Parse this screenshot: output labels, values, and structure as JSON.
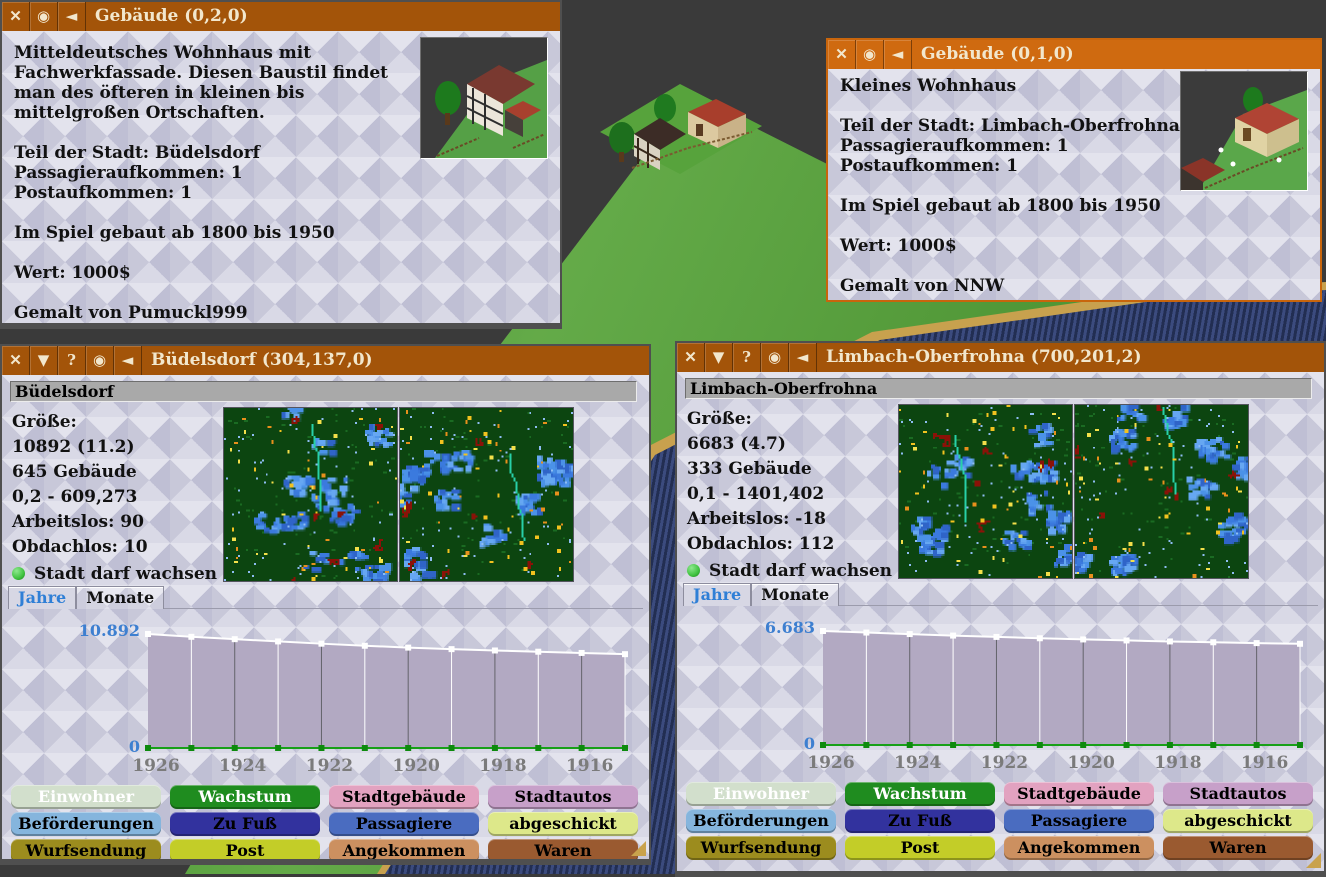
{
  "ui": {
    "colors": {
      "titlebar_focused": "#cf6a10",
      "titlebar_unfocused": "#a35409",
      "tab_active": "#2f7fd6",
      "chart_label": "#3d7fd0",
      "status_ok": "#3fc23f"
    },
    "titlebar_glyphs": {
      "close": "✕",
      "shade": "▼",
      "help": "?",
      "goto": "◉",
      "sticky": "◄"
    }
  },
  "windows": {
    "building_a": {
      "title": "Gebäude  (0,2,0)",
      "lines": [
        "Mitteldeutsches Wohnhaus mit",
        "Fachwerkfassade. Diesen Baustil findet",
        "man des öfteren in kleinen bis",
        "mittelgroßen Ortschaften.",
        "",
        "Teil der Stadt: Büdelsdorf",
        "Passagieraufkommen: 1",
        "Postaufkommen: 1",
        "",
        "Im Spiel gebaut ab 1800 bis 1950",
        "",
        "Wert: 1000$",
        "",
        "Gemalt von Pumuckl999"
      ]
    },
    "building_b": {
      "title": "Gebäude  (0,1,0)",
      "lines": [
        "Kleines Wohnhaus",
        "",
        "Teil der Stadt: Limbach-Oberfrohna",
        "Passagieraufkommen: 1",
        "Postaufkommen: 1",
        "",
        "Im Spiel gebaut ab 1800 bis 1950",
        "",
        "Wert: 1000$",
        "",
        "Gemalt von NNW"
      ]
    },
    "city_a": {
      "title": "Büdelsdorf  (304,137,0)",
      "name_field": "Büdelsdorf",
      "stats": [
        "Größe:",
        "10892 (11.2)",
        "645 Gebäude",
        "0,2 - 609,273",
        "Arbeitslos: 90",
        "Obdachlos: 10"
      ],
      "status": "Stadt darf wachsen",
      "tabs": [
        "Jahre",
        "Monate"
      ],
      "active_tab": 0,
      "minimap_seeds": [
        11,
        12
      ]
    },
    "city_b": {
      "title": "Limbach-Oberfrohna  (700,201,2)",
      "name_field": "Limbach-Oberfrohna",
      "stats": [
        "Größe:",
        "6683 (4.7)",
        "333 Gebäude",
        "0,1 - 1401,402",
        "Arbeitslos: -18",
        "Obdachlos: 112"
      ],
      "status": "Stadt darf wachsen",
      "tabs": [
        "Jahre",
        "Monate"
      ],
      "active_tab": 0,
      "minimap_seeds": [
        21,
        22
      ]
    }
  },
  "city_buttons": [
    {
      "label": "Einwohner",
      "bg": "#d2dfcc",
      "fg": "#ffffff"
    },
    {
      "label": "Wachstum",
      "bg": "#1f8c1f",
      "fg": "#ffffff"
    },
    {
      "label": "Stadtgebäude",
      "bg": "#e2a2c0",
      "fg": "#000000"
    },
    {
      "label": "Stadtautos",
      "bg": "#c7a0c9",
      "fg": "#000000"
    },
    {
      "label": "Beförderungen",
      "bg": "#85b5dd",
      "fg": "#000000"
    },
    {
      "label": "Zu Fuß",
      "bg": "#32329e",
      "fg": "#000000"
    },
    {
      "label": "Passagiere",
      "bg": "#4a6cc0",
      "fg": "#000000"
    },
    {
      "label": "abgeschickt",
      "bg": "#dde88a",
      "fg": "#000000"
    },
    {
      "label": "Wurfsendung",
      "bg": "#9c8c1e",
      "fg": "#000000"
    },
    {
      "label": "Post",
      "bg": "#c3cd28",
      "fg": "#000000"
    },
    {
      "label": "Angekommen",
      "bg": "#cc9060",
      "fg": "#000000"
    },
    {
      "label": "Waren",
      "bg": "#9a5a30",
      "fg": "#000000"
    }
  ],
  "chart_data": [
    {
      "type": "line",
      "title": "Büdelsdorf Jahresstatistik",
      "y_top_label": "10.892",
      "y_bottom_label": "0",
      "ylim": [
        0,
        10892
      ],
      "x_years": [
        1926,
        1925,
        1924,
        1923,
        1922,
        1921,
        1920,
        1919,
        1918,
        1917,
        1916,
        1915
      ],
      "x_tick_labels": [
        "1926",
        "1924",
        "1922",
        "1920",
        "1918",
        "1916"
      ],
      "series": [
        {
          "name": "Einwohner",
          "color": "#ffffff",
          "values": [
            10892,
            10620,
            10390,
            10170,
            9950,
            9750,
            9570,
            9420,
            9290,
            9170,
            9050,
            8930
          ]
        },
        {
          "name": "Wachstum",
          "color": "#17a017",
          "values": [
            0,
            0,
            0,
            0,
            0,
            0,
            0,
            0,
            0,
            0,
            0,
            0
          ]
        }
      ]
    },
    {
      "type": "line",
      "title": "Limbach-Oberfrohna Jahresstatistik",
      "y_top_label": "6.683",
      "y_bottom_label": "0",
      "ylim": [
        0,
        6683
      ],
      "x_years": [
        1926,
        1925,
        1924,
        1923,
        1922,
        1921,
        1920,
        1919,
        1918,
        1917,
        1916,
        1915
      ],
      "x_tick_labels": [
        "1926",
        "1924",
        "1922",
        "1920",
        "1918",
        "1916"
      ],
      "series": [
        {
          "name": "Einwohner",
          "color": "#ffffff",
          "values": [
            6683,
            6590,
            6500,
            6410,
            6330,
            6250,
            6180,
            6120,
            6060,
            6010,
            5960,
            5920
          ]
        },
        {
          "name": "Wachstum",
          "color": "#17a017",
          "values": [
            0,
            0,
            0,
            0,
            0,
            0,
            0,
            0,
            0,
            0,
            0,
            0
          ]
        }
      ]
    }
  ]
}
